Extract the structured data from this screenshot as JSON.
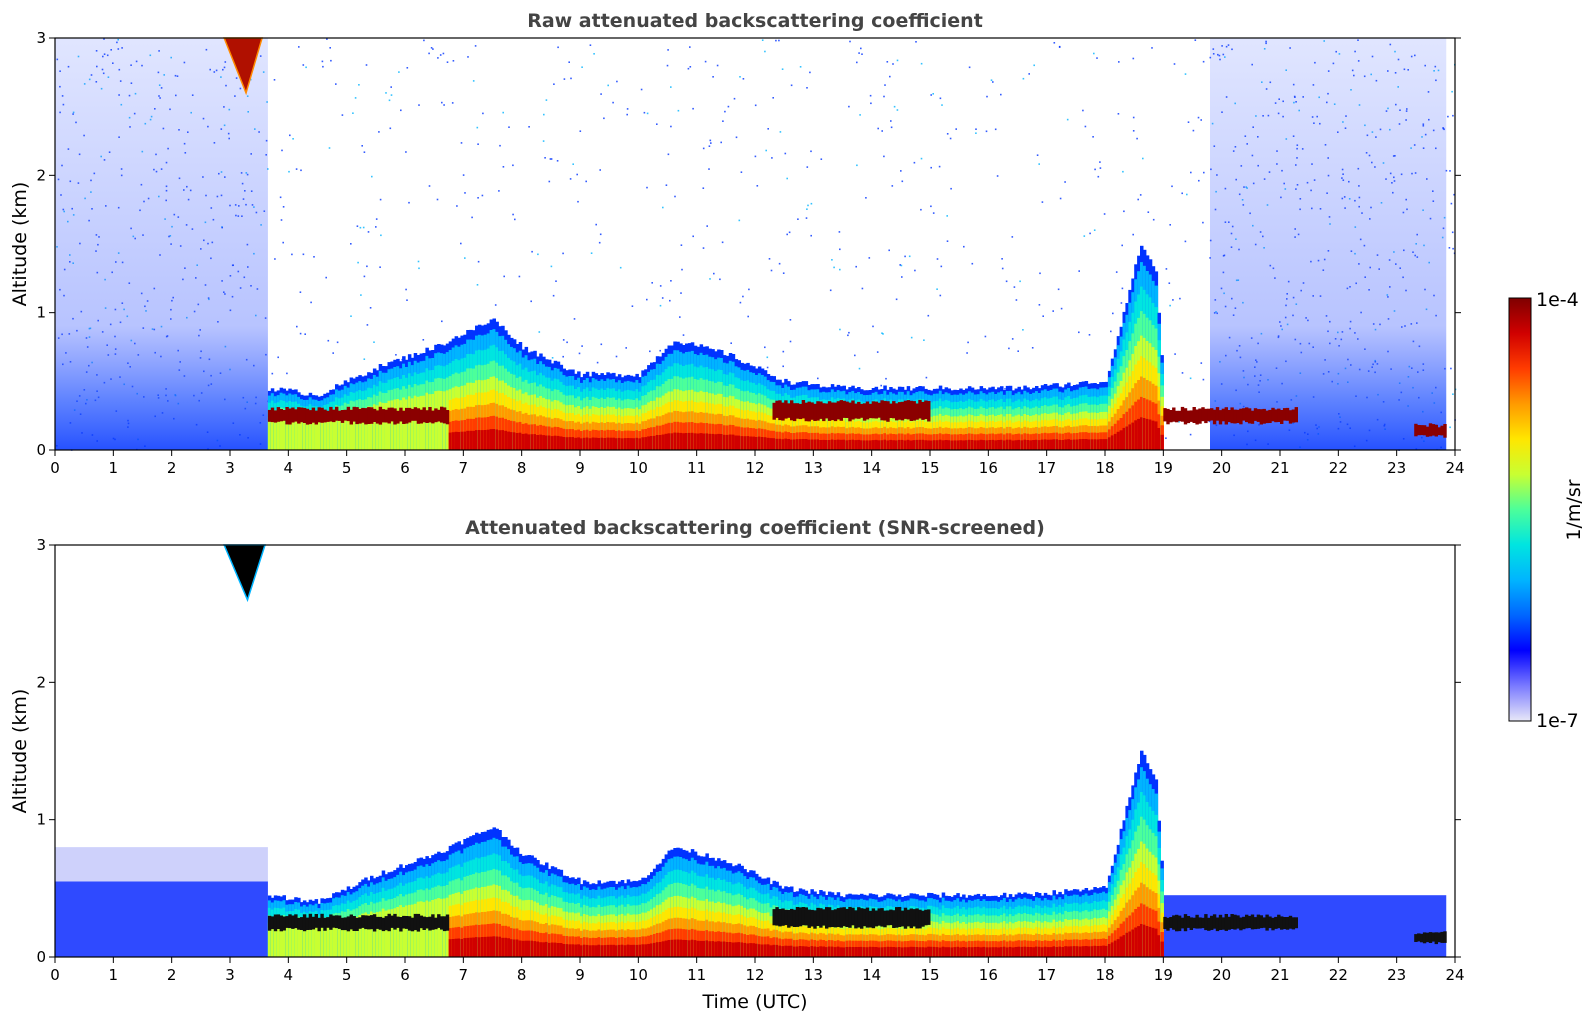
{
  "chart_data": [
    {
      "type": "heatmap",
      "title": "Raw attenuated backscattering coefficient",
      "xlabel": "",
      "ylabel": "Altitude (km)",
      "xlim": [
        0,
        24
      ],
      "ylim": [
        0,
        3
      ],
      "xticks": [
        "0",
        "1",
        "2",
        "3",
        "4",
        "5",
        "6",
        "7",
        "8",
        "9",
        "10",
        "11",
        "12",
        "13",
        "14",
        "15",
        "16",
        "17",
        "18",
        "19",
        "20",
        "21",
        "22",
        "23",
        "24"
      ],
      "yticks": [
        "0",
        "1",
        "2",
        "3"
      ],
      "boundary_layer_top_km": [
        {
          "t": 3.65,
          "z": 0.45
        },
        {
          "t": 4.5,
          "z": 0.4
        },
        {
          "t": 5.5,
          "z": 0.6
        },
        {
          "t": 6.5,
          "z": 0.75
        },
        {
          "t": 7.0,
          "z": 0.85
        },
        {
          "t": 7.5,
          "z": 0.95
        },
        {
          "t": 8.0,
          "z": 0.75
        },
        {
          "t": 9.0,
          "z": 0.55
        },
        {
          "t": 10.0,
          "z": 0.55
        },
        {
          "t": 10.6,
          "z": 0.8
        },
        {
          "t": 11.5,
          "z": 0.7
        },
        {
          "t": 12.5,
          "z": 0.5
        },
        {
          "t": 13.5,
          "z": 0.45
        },
        {
          "t": 15.0,
          "z": 0.45
        },
        {
          "t": 16.5,
          "z": 0.45
        },
        {
          "t": 18.0,
          "z": 0.5
        },
        {
          "t": 18.6,
          "z": 1.5
        },
        {
          "t": 18.85,
          "z": 1.3
        },
        {
          "t": 19.0,
          "z": 0.4
        },
        {
          "t": 21.3,
          "z": 0.35
        }
      ],
      "elevated_cloud": {
        "t_start": 2.9,
        "t_end": 3.55,
        "z_bottom": 2.6,
        "z_top": 3.0
      }
    },
    {
      "type": "heatmap",
      "title": "Attenuated backscattering coefficient (SNR-screened)",
      "xlabel": "Time (UTC)",
      "ylabel": "Altitude (km)",
      "xlim": [
        0,
        24
      ],
      "ylim": [
        0,
        3
      ],
      "xticks": [
        "0",
        "1",
        "2",
        "3",
        "4",
        "5",
        "6",
        "7",
        "8",
        "9",
        "10",
        "11",
        "12",
        "13",
        "14",
        "15",
        "16",
        "17",
        "18",
        "19",
        "20",
        "21",
        "22",
        "23",
        "24"
      ],
      "yticks": [
        "0",
        "1",
        "2",
        "3"
      ],
      "elevated_cloud": {
        "t_start": 2.9,
        "t_end": 3.6,
        "z_bottom": 2.6,
        "z_top": 3.0
      }
    }
  ],
  "colorbar": {
    "label": "1/m/sr",
    "min_label": "1e-7",
    "max_label": "1e-4",
    "scale": "log",
    "colors": [
      "#e8e8f8",
      "#7a7aff",
      "#0000ff",
      "#0066ff",
      "#00b4ff",
      "#00e5e0",
      "#4cff9a",
      "#c8ff32",
      "#ffe600",
      "#ff9a00",
      "#ff3c00",
      "#d00000",
      "#7f0000"
    ]
  }
}
